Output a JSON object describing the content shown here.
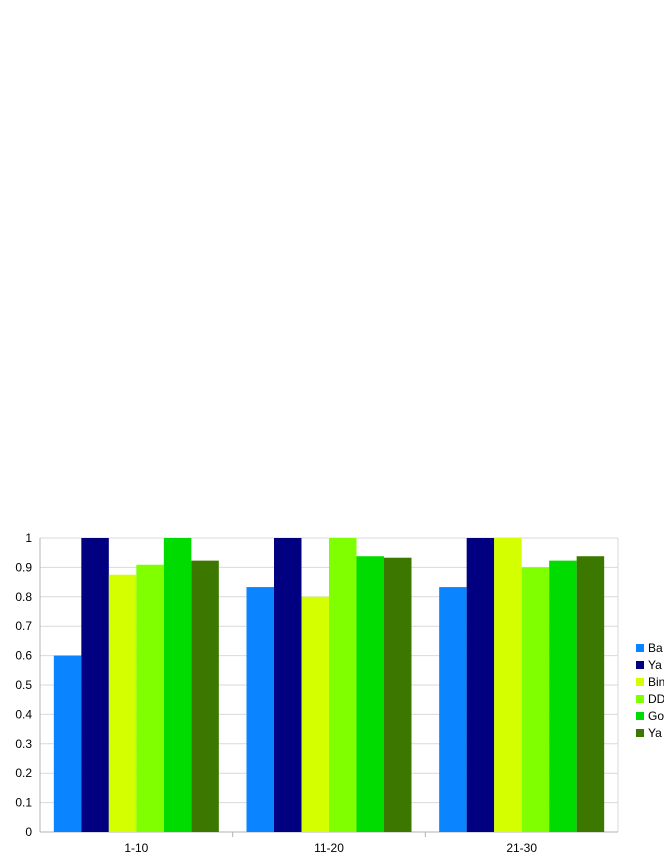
{
  "chart_data": {
    "type": "bar",
    "title": "",
    "xlabel": "",
    "ylabel": "",
    "categories": [
      "1-10",
      "11-20",
      "21-30"
    ],
    "ylim": [
      0,
      1
    ],
    "yticks": [
      "0",
      "0.1",
      "0.2",
      "0.3",
      "0.4",
      "0.5",
      "0.6",
      "0.7",
      "0.8",
      "0.9",
      "1"
    ],
    "grid": true,
    "legend_position": "right",
    "series": [
      {
        "name": "Ba",
        "color": "#0a84ff",
        "values": [
          0.6,
          0.833,
          0.833
        ]
      },
      {
        "name": "Ya",
        "color": "#000080",
        "values": [
          1.0,
          1.0,
          1.0
        ]
      },
      {
        "name": "Bin",
        "color": "#d4ff00",
        "values": [
          0.875,
          0.8,
          1.0
        ]
      },
      {
        "name": "DD",
        "color": "#7fff00",
        "values": [
          0.909,
          1.0,
          0.9
        ]
      },
      {
        "name": "Go",
        "color": "#00dc00",
        "values": [
          1.0,
          0.938,
          0.923
        ]
      },
      {
        "name": "Ya",
        "color": "#3c7800",
        "values": [
          0.923,
          0.933,
          0.938
        ]
      }
    ]
  }
}
